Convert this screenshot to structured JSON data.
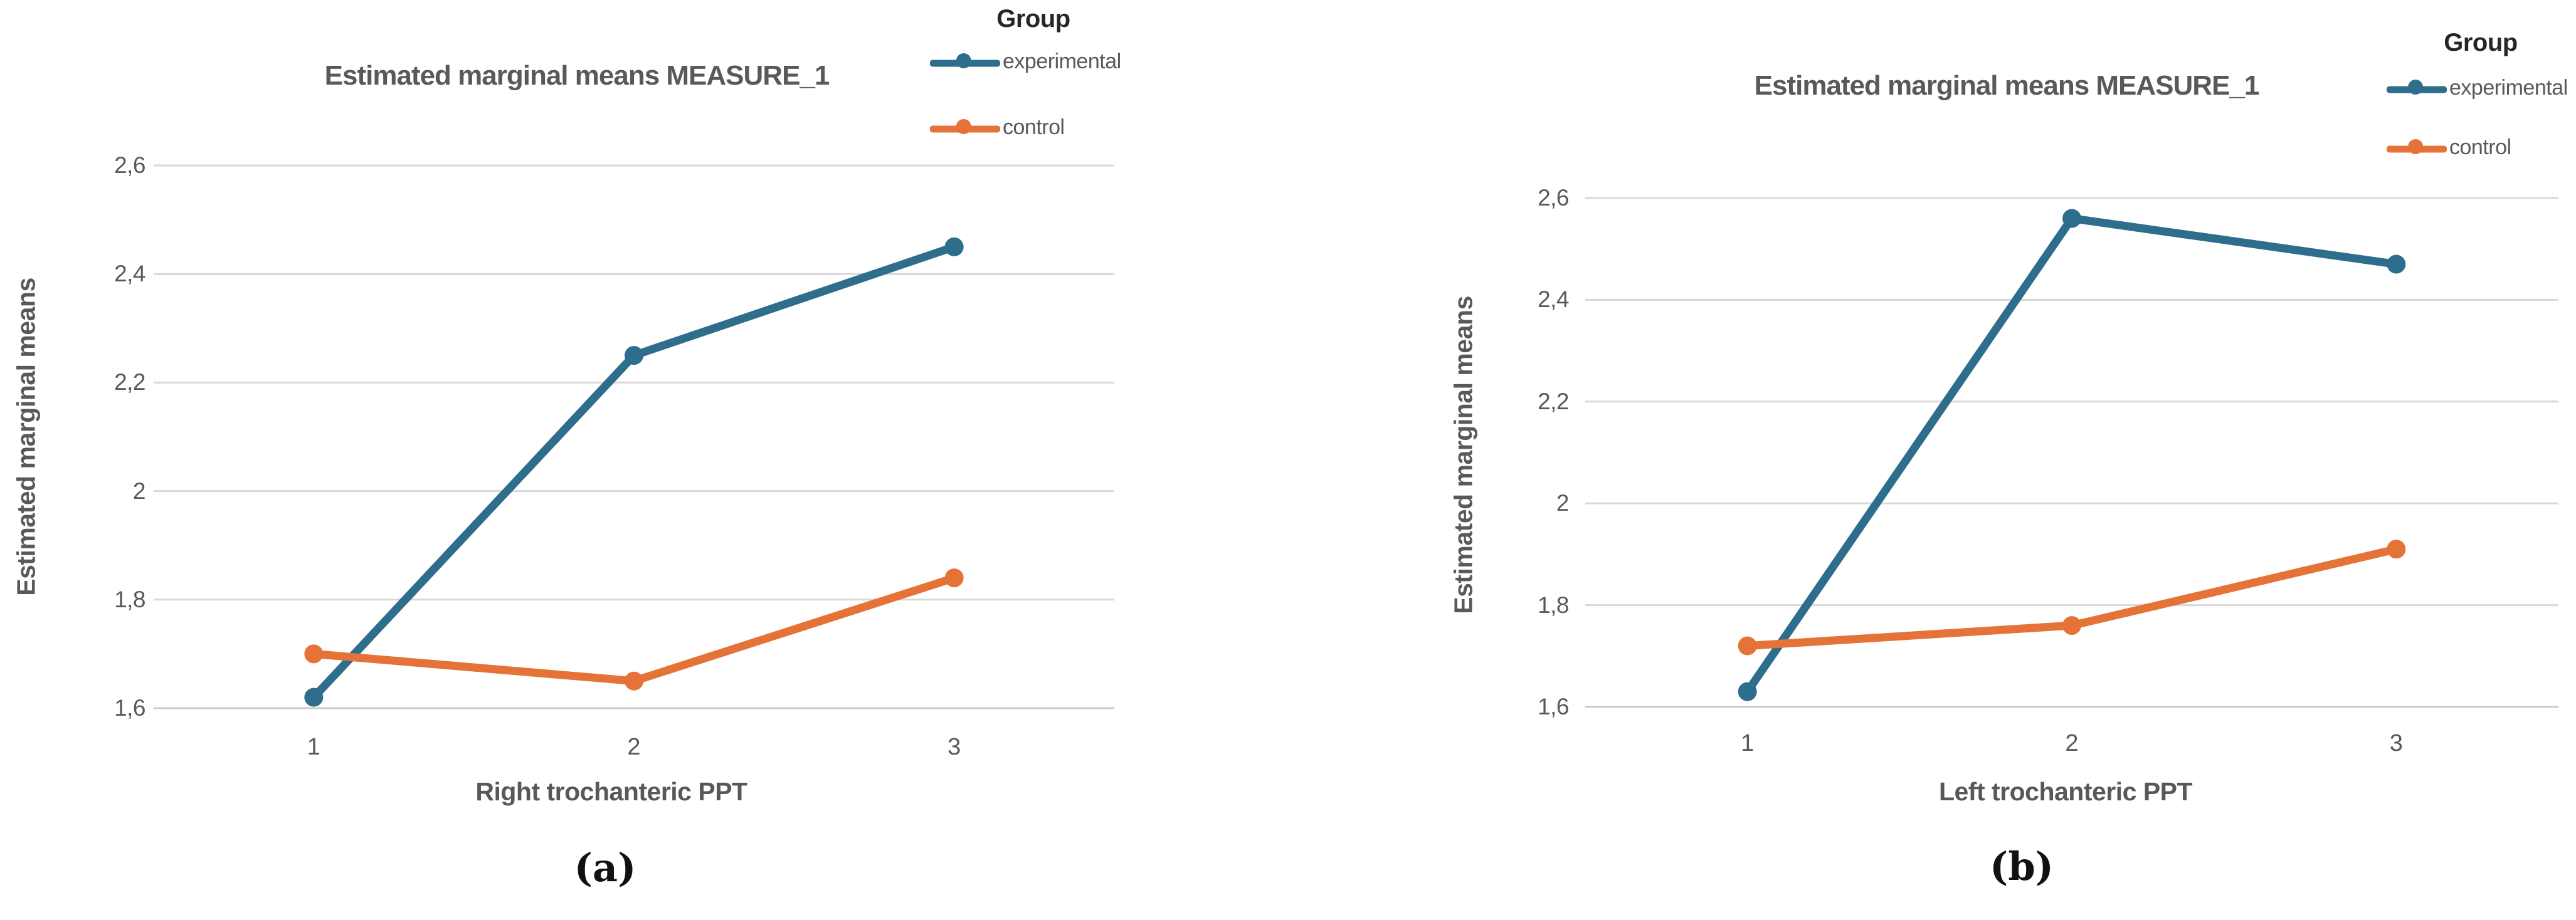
{
  "chart_data": [
    {
      "type": "line",
      "title": "Estimated marginal means MEASURE_1",
      "legend_title": "Group",
      "legend_position": "top-right",
      "xlabel": "Right trochanteric PPT",
      "ylabel": "Estimated marginal means",
      "caption": "(a)",
      "categories": [
        "1",
        "2",
        "3"
      ],
      "x": [
        1,
        2,
        3
      ],
      "series": [
        {
          "name": "experimental",
          "color": "#2E6D8C",
          "values": [
            1.62,
            2.25,
            2.45
          ]
        },
        {
          "name": "control",
          "color": "#E57337",
          "values": [
            1.7,
            1.65,
            1.84
          ]
        }
      ],
      "ylim": [
        1.6,
        2.6
      ],
      "yticks": {
        "values": [
          2.6,
          2.4,
          2.2,
          2.0,
          1.8,
          1.6
        ],
        "labels": [
          "2,6",
          "2,4",
          "2,2",
          "2",
          "1,8",
          "1,6"
        ]
      },
      "grid": "horizontal",
      "grid_color": "#D8D8D8",
      "axis_line_color": "#C9CBCC"
    },
    {
      "type": "line",
      "title": "Estimated marginal means MEASURE_1",
      "legend_title": "Group",
      "legend_position": "top-right",
      "xlabel": "Left trochanteric PPT",
      "ylabel": "Estimated marginal means",
      "caption": "(b)",
      "categories": [
        "1",
        "2",
        "3"
      ],
      "x": [
        1,
        2,
        3
      ],
      "series": [
        {
          "name": "experimental",
          "color": "#2E6D8C",
          "values": [
            1.63,
            2.56,
            2.47
          ]
        },
        {
          "name": "control",
          "color": "#E57337",
          "values": [
            1.72,
            1.76,
            1.91
          ]
        }
      ],
      "ylim": [
        1.6,
        2.6
      ],
      "yticks": {
        "values": [
          2.6,
          2.4,
          2.2,
          2.0,
          1.8,
          1.6
        ],
        "labels": [
          "2,6",
          "2,4",
          "2,2",
          "2",
          "1,8",
          "1,6"
        ]
      },
      "grid": "horizontal",
      "grid_color": "#D8D8D8",
      "axis_line_color": "#C9CBCC"
    }
  ]
}
